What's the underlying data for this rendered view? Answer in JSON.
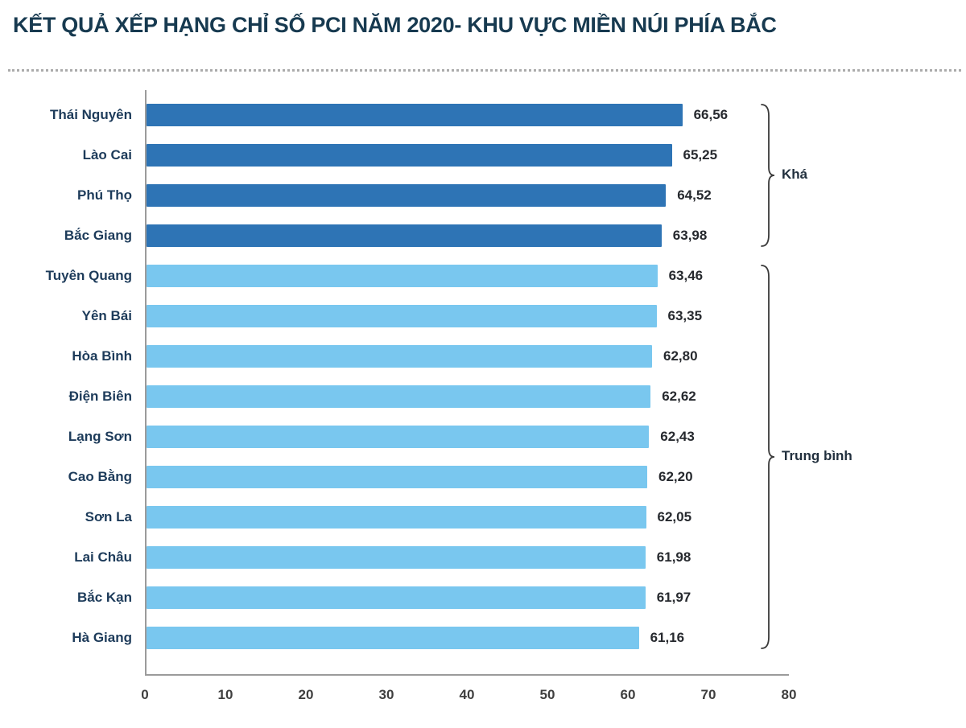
{
  "title": "KẾT QUẢ XẾP HẠNG CHỈ SỐ PCI NĂM 2020- KHU VỰC MIỀN NÚI PHÍA BẮC",
  "colors": {
    "bar_kha": "#2e74b5",
    "bar_trungbinh": "#79c7ef",
    "title": "#173a50",
    "label": "#1d3b5a",
    "value": "#26292e",
    "axis": "#9b9b9b",
    "bracket": "#3a3a3a"
  },
  "chart_data": {
    "type": "bar",
    "orientation": "horizontal",
    "title": "KẾT QUẢ XẾP HẠNG CHỈ SỐ PCI NĂM 2020- KHU VỰC MIỀN NÚI PHÍA BẮC",
    "categories": [
      "Thái Nguyên",
      "Lào Cai",
      "Phú Thọ",
      "Bắc Giang",
      "Tuyên Quang",
      "Yên Bái",
      "Hòa Bình",
      "Điện Biên",
      "Lạng Sơn",
      "Cao Bằng",
      "Sơn La",
      "Lai Châu",
      "Bắc Kạn",
      "Hà Giang"
    ],
    "values": [
      66.56,
      65.25,
      64.52,
      63.98,
      63.46,
      63.35,
      62.8,
      62.62,
      62.43,
      62.2,
      62.05,
      61.98,
      61.97,
      61.16
    ],
    "value_labels": [
      "66,56",
      "65,25",
      "64,52",
      "63,98",
      "63,46",
      "63,35",
      "62,80",
      "62,62",
      "62,43",
      "62,20",
      "62,05",
      "61,98",
      "61,97",
      "61,16"
    ],
    "xlabel": "",
    "ylabel": "",
    "xlim": [
      0,
      80
    ],
    "x_ticks": [
      0,
      10,
      20,
      30,
      40,
      50,
      60,
      70,
      80
    ],
    "grid": false,
    "legend": "none",
    "groups": [
      {
        "label": "Khá",
        "start": 0,
        "end": 3,
        "color_key": "bar_kha"
      },
      {
        "label": "Trung bình",
        "start": 4,
        "end": 13,
        "color_key": "bar_trungbinh"
      }
    ]
  }
}
